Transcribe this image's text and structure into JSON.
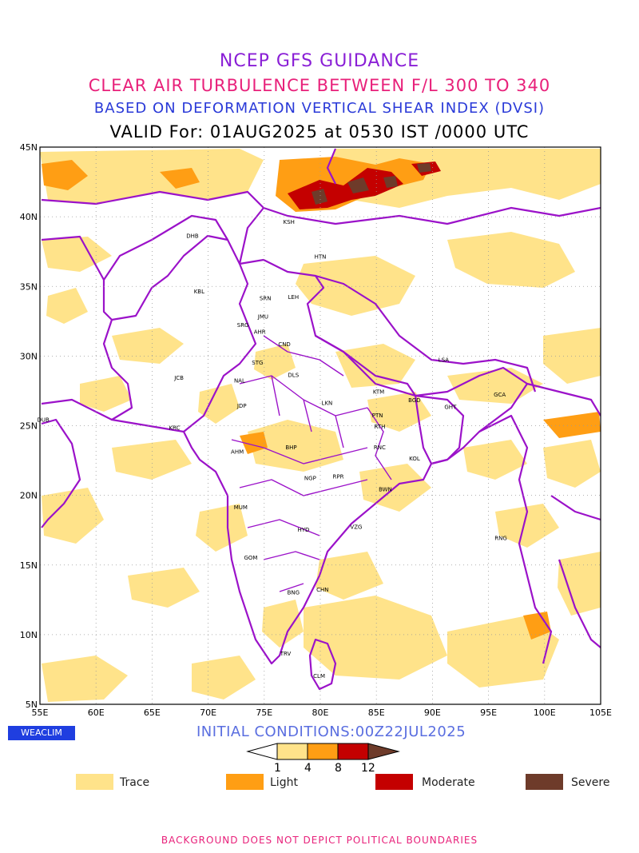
{
  "titles": {
    "line1": "NCEP GFS GUIDANCE",
    "line2": "CLEAR AIR TURBULENCE BETWEEN F/L 300 TO 340",
    "line3": "BASED ON DEFORMATION VERTICAL SHEAR INDEX (DVSI)",
    "line4": "VALID For: 01AUG2025 at 0530 IST /0000 UTC"
  },
  "axes": {
    "lat_labels": [
      "45N",
      "40N",
      "35N",
      "30N",
      "25N",
      "20N",
      "15N",
      "10N",
      "5N"
    ],
    "lon_labels": [
      "55E",
      "60E",
      "65E",
      "70E",
      "75E",
      "80E",
      "85E",
      "90E",
      "95E",
      "100E",
      "105E"
    ],
    "lat_range": [
      5,
      45
    ],
    "lon_range": [
      55,
      105
    ],
    "grid": "dotted"
  },
  "cities": [
    {
      "code": "KSH",
      "lon": 77.2,
      "lat": 39.5
    },
    {
      "code": "DHB",
      "lon": 68.6,
      "lat": 38.5
    },
    {
      "code": "HTN",
      "lon": 80.0,
      "lat": 37.0
    },
    {
      "code": "KBL",
      "lon": 69.2,
      "lat": 34.5
    },
    {
      "code": "SRN",
      "lon": 75.1,
      "lat": 34.0
    },
    {
      "code": "LEH",
      "lon": 77.6,
      "lat": 34.1
    },
    {
      "code": "JMU",
      "lon": 74.9,
      "lat": 32.7
    },
    {
      "code": "SRG",
      "lon": 73.1,
      "lat": 32.1
    },
    {
      "code": "AHR",
      "lon": 74.6,
      "lat": 31.6
    },
    {
      "code": "CND",
      "lon": 76.8,
      "lat": 30.7
    },
    {
      "code": "STG",
      "lon": 74.4,
      "lat": 29.4
    },
    {
      "code": "DLS",
      "lon": 77.6,
      "lat": 28.5
    },
    {
      "code": "JCB",
      "lon": 67.4,
      "lat": 28.3
    },
    {
      "code": "NAL",
      "lon": 72.8,
      "lat": 28.1
    },
    {
      "code": "LSA",
      "lon": 91.0,
      "lat": 29.6
    },
    {
      "code": "KTM",
      "lon": 85.2,
      "lat": 27.3
    },
    {
      "code": "BGD",
      "lon": 88.4,
      "lat": 26.7
    },
    {
      "code": "GCA",
      "lon": 96.0,
      "lat": 27.1
    },
    {
      "code": "LKN",
      "lon": 80.6,
      "lat": 26.5
    },
    {
      "code": "JDP",
      "lon": 73.0,
      "lat": 26.3
    },
    {
      "code": "GHT",
      "lon": 91.6,
      "lat": 26.2
    },
    {
      "code": "PTN",
      "lon": 85.1,
      "lat": 25.6
    },
    {
      "code": "DUB",
      "lon": 55.3,
      "lat": 25.3
    },
    {
      "code": "RTH",
      "lon": 85.3,
      "lat": 24.8
    },
    {
      "code": "KRC",
      "lon": 67.0,
      "lat": 24.7
    },
    {
      "code": "AHM",
      "lon": 72.6,
      "lat": 23.0
    },
    {
      "code": "BHP",
      "lon": 77.4,
      "lat": 23.3
    },
    {
      "code": "RNC",
      "lon": 85.3,
      "lat": 23.3
    },
    {
      "code": "KOL",
      "lon": 88.4,
      "lat": 22.5
    },
    {
      "code": "NGP",
      "lon": 79.1,
      "lat": 21.1
    },
    {
      "code": "RPR",
      "lon": 81.6,
      "lat": 21.2
    },
    {
      "code": "BWN",
      "lon": 85.8,
      "lat": 20.3
    },
    {
      "code": "MUM",
      "lon": 72.9,
      "lat": 19.0
    },
    {
      "code": "HYD",
      "lon": 78.5,
      "lat": 17.4
    },
    {
      "code": "VZG",
      "lon": 83.2,
      "lat": 17.6
    },
    {
      "code": "RNG",
      "lon": 96.1,
      "lat": 16.8
    },
    {
      "code": "GOM",
      "lon": 73.8,
      "lat": 15.4
    },
    {
      "code": "BNG",
      "lon": 77.6,
      "lat": 12.9
    },
    {
      "code": "CHN",
      "lon": 80.2,
      "lat": 13.1
    },
    {
      "code": "TRV",
      "lon": 76.9,
      "lat": 8.5
    },
    {
      "code": "CLM",
      "lon": 79.9,
      "lat": 6.9
    }
  ],
  "initial_conditions": "INITIAL CONDITIONS:00Z22JUL2025",
  "logo_text": "WEACLIM",
  "colorbar": {
    "ticks": [
      "1",
      "4",
      "8",
      "12"
    ],
    "colors": [
      "#ffe38a",
      "#ff9e14",
      "#c40000",
      "#6e3b2a"
    ]
  },
  "legend": [
    {
      "label": "Trace",
      "color": "#ffe38a"
    },
    {
      "label": "Light",
      "color": "#ff9e14"
    },
    {
      "label": "Moderate",
      "color": "#c40000"
    },
    {
      "label": "Severe",
      "color": "#6e3b2a"
    }
  ],
  "disclaimer": "BACKGROUND DOES NOT DEPICT POLITICAL BOUNDARIES",
  "colors": {
    "boundary": "#9b12c9",
    "trace": "#ffe38a",
    "light": "#ff9e14",
    "moderate": "#c40000",
    "severe": "#6e3b2a"
  }
}
